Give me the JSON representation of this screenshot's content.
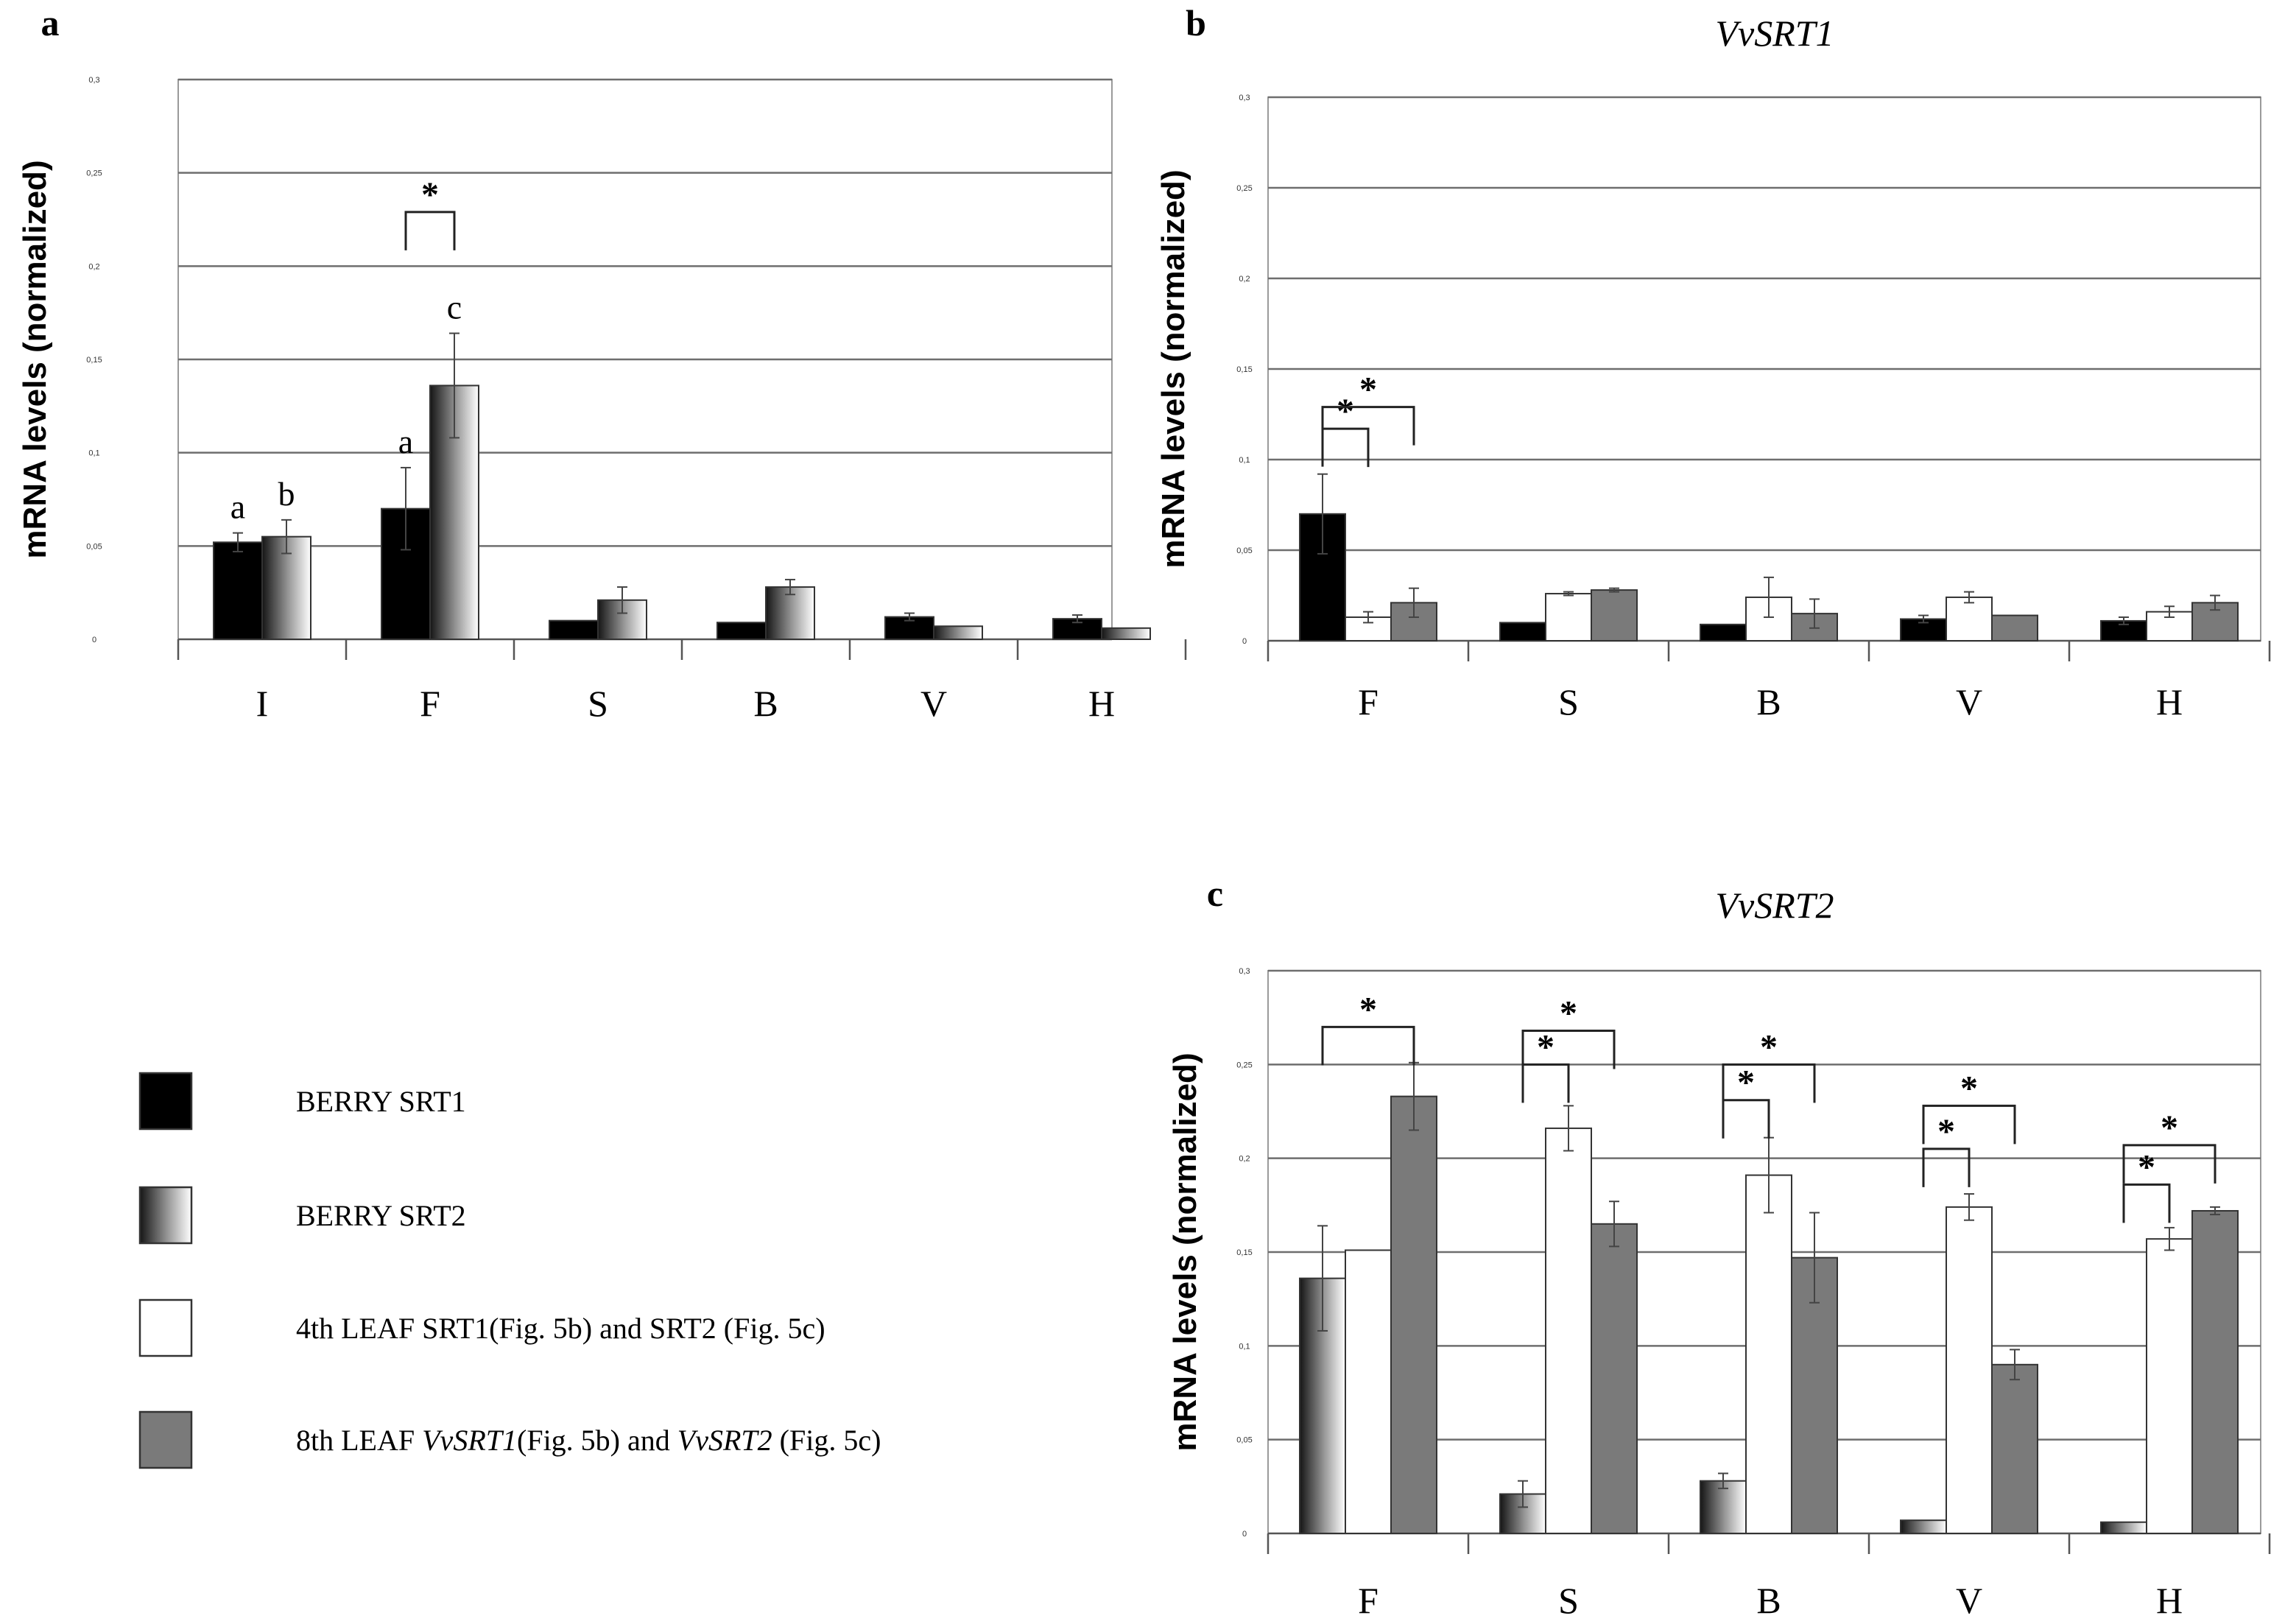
{
  "colors": {
    "berry_srt1": "#000000",
    "leaf4": "#ffffff",
    "leaf8": "#7a7a7a",
    "grid": "#6e6e6e",
    "axis": "#9a9a9a"
  },
  "legend": {
    "items": [
      {
        "key": "berry_srt1",
        "label": "BERRY SRT1"
      },
      {
        "key": "berry_srt2",
        "label": "BERRY SRT2"
      },
      {
        "key": "leaf4",
        "label": "4th LEAF SRT1(Fig. 5b) and SRT2 (Fig. 5c)"
      },
      {
        "key": "leaf8",
        "label_parts": [
          "8th LEAF ",
          "VvSRT1",
          "(Fig. 5b) and ",
          "VvSRT2",
          " (Fig. 5c)"
        ]
      }
    ]
  },
  "chart_data": [
    {
      "panel_letter": "a",
      "type": "bar",
      "title": "",
      "ylabel": "mRNA levels (normalized)",
      "ylim": [
        0,
        0.3
      ],
      "yticks": [
        "0",
        "0,05",
        "0,1",
        "0,15",
        "0,2",
        "0,25",
        "0,3"
      ],
      "categories": [
        "I",
        "F",
        "S",
        "B",
        "V",
        "H"
      ],
      "series": [
        {
          "key": "berry_srt1",
          "values": [
            0.052,
            0.07,
            0.01,
            0.009,
            0.012,
            0.011
          ],
          "errors": [
            0.005,
            0.022,
            0,
            0,
            0.002,
            0.002
          ]
        },
        {
          "key": "berry_srt2",
          "values": [
            0.055,
            0.136,
            0.021,
            0.028,
            0.007,
            0.006
          ],
          "errors": [
            0.009,
            0.028,
            0.007,
            0.004,
            0,
            0
          ]
        }
      ],
      "letters": [
        {
          "category": 0,
          "series": 0,
          "text": "a"
        },
        {
          "category": 0,
          "series": 1,
          "text": "b"
        },
        {
          "category": 1,
          "series": 0,
          "text": "a"
        },
        {
          "category": 1,
          "series": 1,
          "text": "c"
        }
      ],
      "brackets": [
        {
          "category": 1,
          "from": 0,
          "to": 1,
          "y": 0.229
        }
      ]
    },
    {
      "panel_letter": "b",
      "type": "bar",
      "title": "VvSRT1",
      "ylabel": "mRNA levels (normalized)",
      "ylim": [
        0,
        0.3
      ],
      "yticks": [
        "0",
        "0,05",
        "0,1",
        "0,15",
        "0,2",
        "0,25",
        "0,3"
      ],
      "categories": [
        "F",
        "S",
        "B",
        "V",
        "H"
      ],
      "series": [
        {
          "key": "berry_srt1",
          "values": [
            0.07,
            0.01,
            0.009,
            0.012,
            0.011
          ],
          "errors": [
            0.022,
            0,
            0,
            0.002,
            0.002
          ]
        },
        {
          "key": "leaf4",
          "values": [
            0.013,
            0.026,
            0.024,
            0.024,
            0.016
          ],
          "errors": [
            0.003,
            0.001,
            0.011,
            0.003,
            0.003
          ]
        },
        {
          "key": "leaf8",
          "values": [
            0.021,
            0.028,
            0.015,
            0.014,
            0.021
          ],
          "errors": [
            0.008,
            0.001,
            0.008,
            0,
            0.004
          ]
        }
      ],
      "brackets": [
        {
          "category": 0,
          "from": 0,
          "to": 1,
          "y": 0.117
        },
        {
          "category": 0,
          "from": 0,
          "to": 2,
          "y": 0.129
        }
      ]
    },
    {
      "panel_letter": "c",
      "type": "bar",
      "title": "VvSRT2",
      "ylabel": "mRNA levels (normalized)",
      "ylim": [
        0,
        0.3
      ],
      "yticks": [
        "0",
        "0,05",
        "0,1",
        "0,15",
        "0,2",
        "0,25",
        "0,3"
      ],
      "categories": [
        "F",
        "S",
        "B",
        "V",
        "H"
      ],
      "series": [
        {
          "key": "berry_srt2",
          "values": [
            0.136,
            0.021,
            0.028,
            0.007,
            0.006
          ],
          "errors": [
            0.028,
            0.007,
            0.004,
            0,
            0
          ]
        },
        {
          "key": "leaf4",
          "values": [
            0.151,
            0.216,
            0.191,
            0.174,
            0.157
          ],
          "errors": [
            0,
            0.012,
            0.02,
            0.007,
            0.006
          ]
        },
        {
          "key": "leaf8",
          "values": [
            0.233,
            0.165,
            0.147,
            0.09,
            0.172
          ],
          "errors": [
            0.018,
            0.012,
            0.024,
            0.008,
            0.002
          ]
        }
      ],
      "brackets": [
        {
          "category": 0,
          "from": 0,
          "to": 2,
          "y": 0.27
        },
        {
          "category": 1,
          "from": 0,
          "to": 1,
          "y": 0.25
        },
        {
          "category": 1,
          "from": 0,
          "to": 2,
          "y": 0.268
        },
        {
          "category": 2,
          "from": 0,
          "to": 1,
          "y": 0.231
        },
        {
          "category": 2,
          "from": 0,
          "to": 2,
          "y": 0.25
        },
        {
          "category": 3,
          "from": 0,
          "to": 1,
          "y": 0.205
        },
        {
          "category": 3,
          "from": 0,
          "to": 2,
          "y": 0.228
        },
        {
          "category": 4,
          "from": 0,
          "to": 1,
          "y": 0.186
        },
        {
          "category": 4,
          "from": 0,
          "to": 2,
          "y": 0.207
        }
      ]
    }
  ]
}
